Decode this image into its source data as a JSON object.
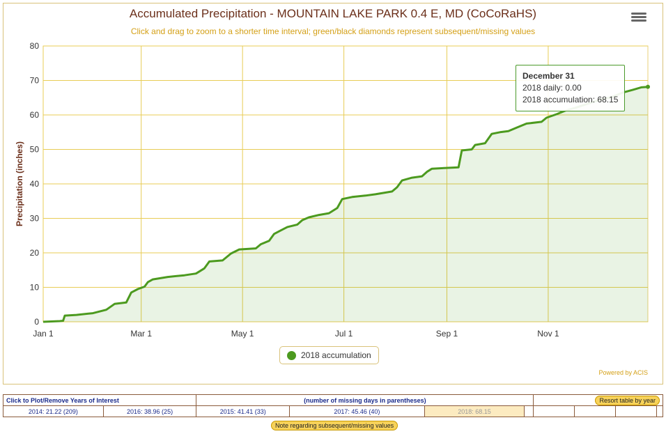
{
  "chart_data": {
    "type": "area",
    "title": "Accumulated Precipitation - MOUNTAIN LAKE PARK 0.4 E, MD (CoCoRaHS)",
    "subtitle": "Click and drag to zoom to a shorter time interval; green/black diamonds represent subsequent/missing values",
    "ylabel": "Precipitation (inches)",
    "xlabel": "",
    "ylim": [
      0,
      80
    ],
    "yticks": [
      "0",
      "10",
      "20",
      "30",
      "40",
      "50",
      "60",
      "70",
      "80"
    ],
    "xticks": [
      {
        "label": "Jan 1",
        "day": 0
      },
      {
        "label": "Mar 1",
        "day": 59
      },
      {
        "label": "May 1",
        "day": 120
      },
      {
        "label": "Jul 1",
        "day": 181
      },
      {
        "label": "Sep 1",
        "day": 243
      },
      {
        "label": "Nov 1",
        "day": 304
      }
    ],
    "xdays": 364,
    "series": [
      {
        "name": "2018 accumulation",
        "color": "#4c9a1f",
        "points": [
          [
            0,
            0
          ],
          [
            10,
            0.2
          ],
          [
            12,
            0.3
          ],
          [
            13,
            1.8
          ],
          [
            20,
            2.0
          ],
          [
            30,
            2.5
          ],
          [
            38,
            3.5
          ],
          [
            43,
            5.2
          ],
          [
            50,
            5.6
          ],
          [
            53,
            8.5
          ],
          [
            57,
            9.5
          ],
          [
            61,
            10.2
          ],
          [
            63,
            11.5
          ],
          [
            66,
            12.3
          ],
          [
            75,
            13
          ],
          [
            85,
            13.5
          ],
          [
            92,
            14
          ],
          [
            97,
            15.5
          ],
          [
            100,
            17.5
          ],
          [
            108,
            17.8
          ],
          [
            113,
            19.8
          ],
          [
            118,
            21
          ],
          [
            128,
            21.3
          ],
          [
            131,
            22.5
          ],
          [
            136,
            23.5
          ],
          [
            139,
            25.5
          ],
          [
            143,
            26.5
          ],
          [
            147,
            27.5
          ],
          [
            153,
            28.2
          ],
          [
            156,
            29.5
          ],
          [
            160,
            30.3
          ],
          [
            166,
            31
          ],
          [
            172,
            31.5
          ],
          [
            177,
            33
          ],
          [
            180,
            35.6
          ],
          [
            186,
            36.2
          ],
          [
            194,
            36.6
          ],
          [
            200,
            37
          ],
          [
            210,
            37.8
          ],
          [
            213,
            39
          ],
          [
            216,
            41
          ],
          [
            222,
            41.8
          ],
          [
            228,
            42.2
          ],
          [
            231,
            43.5
          ],
          [
            234,
            44.4
          ],
          [
            250,
            44.8
          ],
          [
            252,
            49.7
          ],
          [
            258,
            50
          ],
          [
            260,
            51.3
          ],
          [
            266,
            51.8
          ],
          [
            270,
            54.5
          ],
          [
            275,
            55
          ],
          [
            280,
            55.3
          ],
          [
            285,
            56.3
          ],
          [
            291,
            57.5
          ],
          [
            300,
            58
          ],
          [
            303,
            59.2
          ],
          [
            309,
            60.2
          ],
          [
            314,
            61.2
          ],
          [
            320,
            62
          ],
          [
            328,
            63.3
          ],
          [
            336,
            64.5
          ],
          [
            343,
            65.3
          ],
          [
            349,
            66.5
          ],
          [
            355,
            67.3
          ],
          [
            360,
            68
          ],
          [
            364,
            68.15
          ]
        ]
      }
    ],
    "legend": "bottom-center",
    "grid": true
  },
  "tooltip": {
    "title": "December 31",
    "line1": "2018 daily: 0.00",
    "line2": "2018 accumulation: 68.15"
  },
  "powered": "Powered by ACIS",
  "table": {
    "header_left": "Click to Plot/Remove Years of Interest",
    "header_mid": "(number of missing days in parentheses)",
    "resort": "Resort table by year",
    "years": [
      "2014: 21.22 (209)",
      "2016: 38.96 (25)",
      "2015: 41.41 (33)",
      "2017: 45.46 (40)",
      "2018: 68.15"
    ],
    "note": "Note regarding subsequent/missing values"
  }
}
